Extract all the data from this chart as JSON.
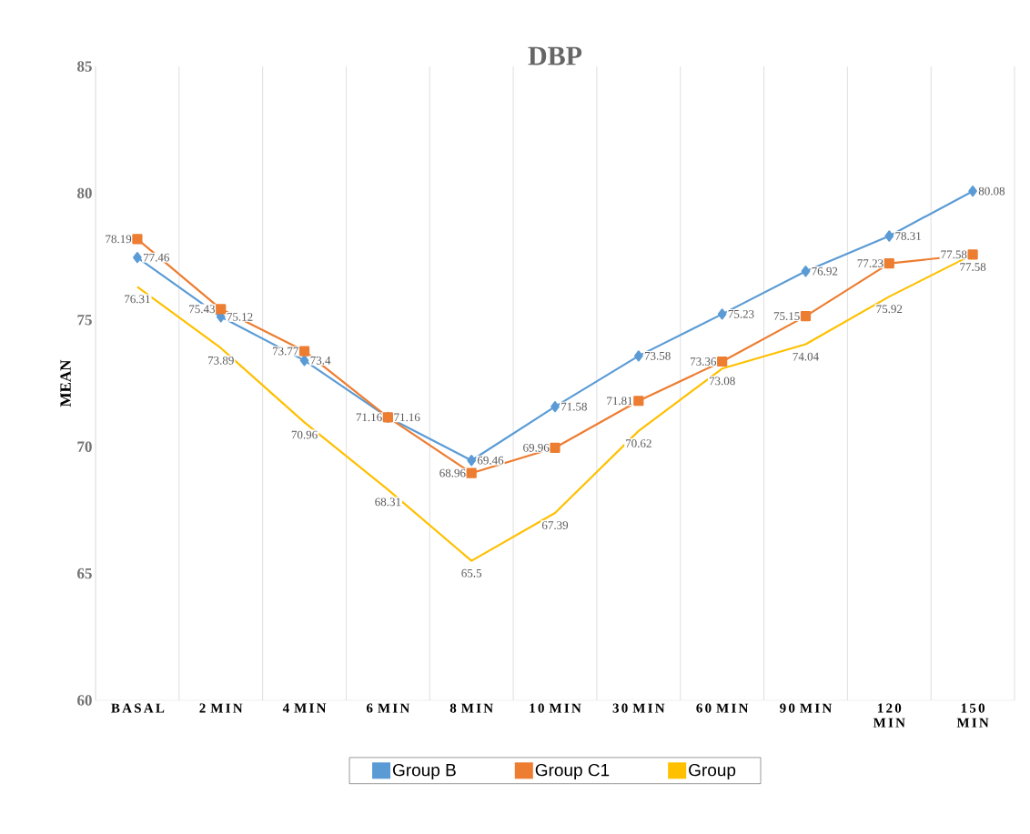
{
  "chart_data": {
    "type": "line",
    "title": "DBP",
    "ylabel": "MEAN",
    "categories": [
      "BASAL",
      "2 MIN",
      "4 MIN",
      "6 MIN",
      "8 MIN",
      "10 MIN",
      "30 MIN",
      "60 MIN",
      "90 MIN",
      "120 MIN",
      "150 MIN"
    ],
    "series": [
      {
        "name": "Group B",
        "color": "#5b9bd5",
        "marker": "diamond",
        "values": [
          77.46,
          75.12,
          73.4,
          71.16,
          69.46,
          71.58,
          73.58,
          75.23,
          76.92,
          78.31,
          80.08
        ]
      },
      {
        "name": "Group C1",
        "color": "#ed7d31",
        "marker": "square",
        "values": [
          78.19,
          75.43,
          73.77,
          71.16,
          68.96,
          69.96,
          71.81,
          73.36,
          75.15,
          77.23,
          77.58
        ]
      },
      {
        "name": "Group",
        "color": "#ffc000",
        "marker": "none",
        "values": [
          76.31,
          73.89,
          70.96,
          68.31,
          65.5,
          67.39,
          70.62,
          73.08,
          74.04,
          75.92,
          77.58
        ]
      }
    ],
    "ylim": [
      60,
      85
    ],
    "yticks": [
      60,
      65,
      70,
      75,
      80,
      85
    ],
    "grid": "x",
    "legend": "bottom",
    "data_labels": true,
    "line_style": "solid"
  }
}
